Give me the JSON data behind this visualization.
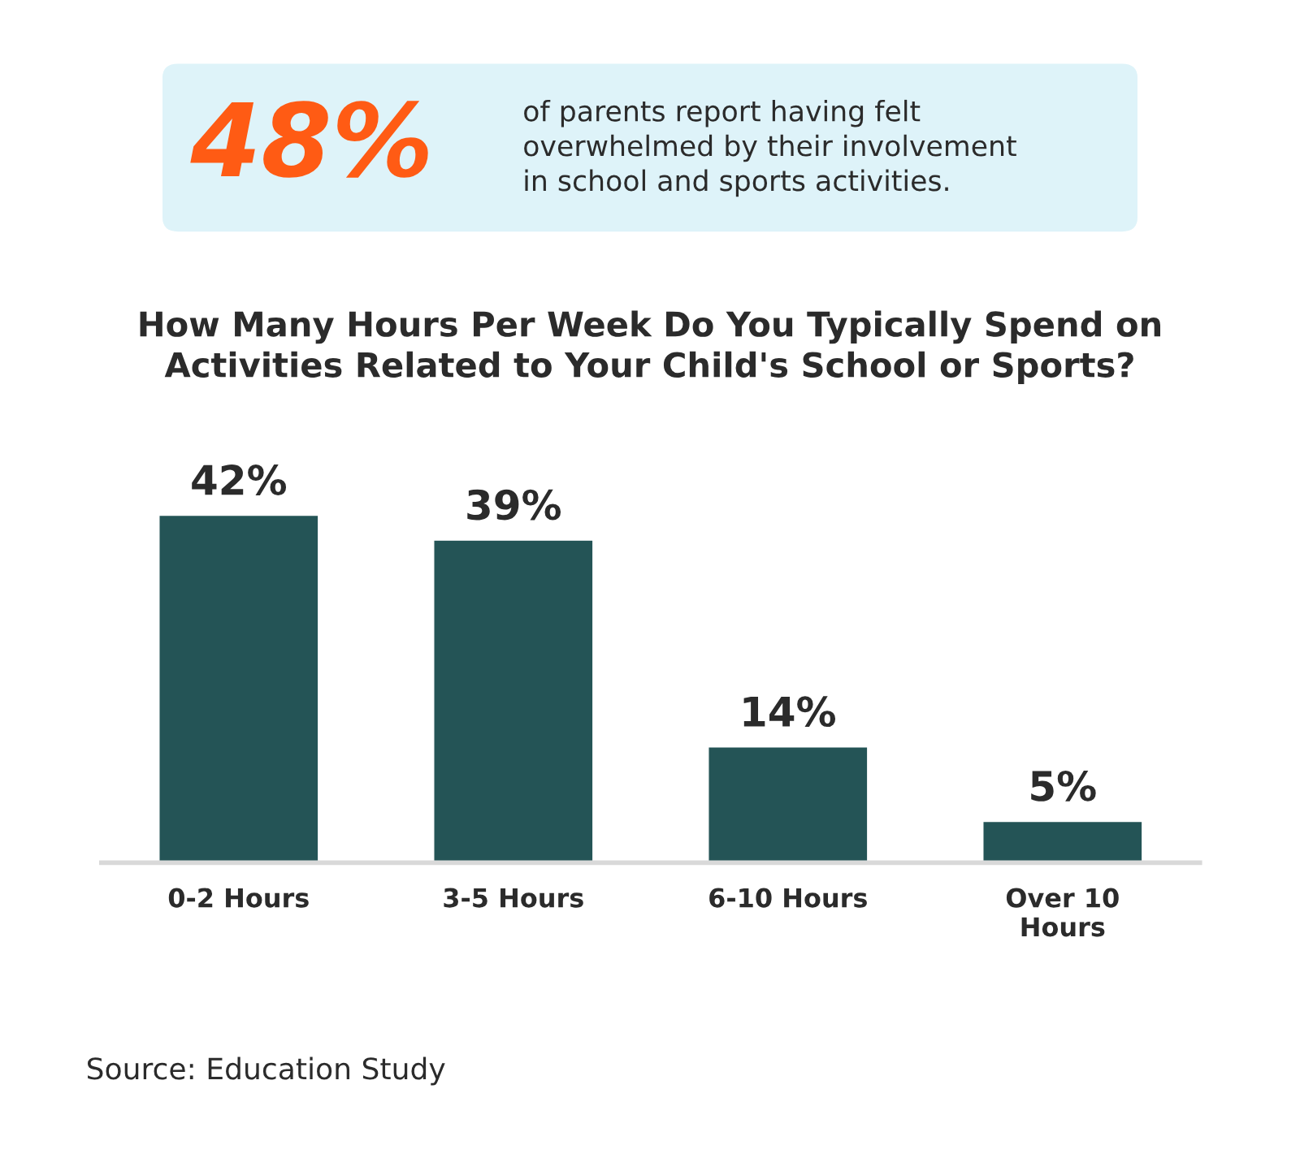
{
  "chart_data": {
    "type": "bar",
    "title": "How Many Hours Per Week Do You Typically Spend on\nActivities Related to Your Child's School or Sports?",
    "categories": [
      "0-2 Hours",
      "3-5 Hours",
      "6-10 Hours",
      "Over 10\nHours"
    ],
    "values": [
      42,
      39,
      14,
      5
    ],
    "value_labels": [
      "42%",
      "39%",
      "14%",
      "5%"
    ],
    "color": "#245456",
    "annotations": [
      "48%",
      "of parents report having felt\noverwhelmed by their involvement\nin school and sports activities.",
      "Source: Education Study"
    ]
  }
}
